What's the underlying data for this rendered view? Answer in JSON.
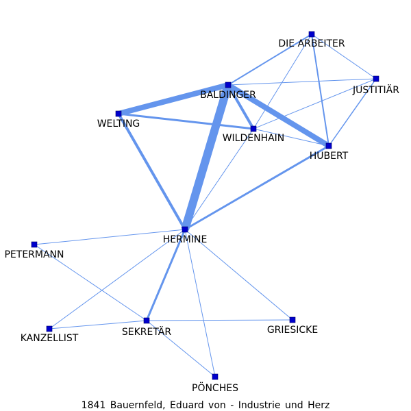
{
  "caption": "1841 Bauernfeld, Eduard von - Industrie und Herz",
  "colors": {
    "edge": "#6495ED",
    "node": "#0000CC",
    "text": "#000000"
  },
  "nodes": [
    {
      "id": "die_arbeiter",
      "label": "DIE ARBEITER"
    },
    {
      "id": "baldinger",
      "label": "BALDINGER"
    },
    {
      "id": "justitiar",
      "label": "JUSTITIÄR"
    },
    {
      "id": "welting",
      "label": "WELTING"
    },
    {
      "id": "wildenhain",
      "label": "WILDENHAIN"
    },
    {
      "id": "hubert",
      "label": "HUBERT"
    },
    {
      "id": "hermine",
      "label": "HERMINE"
    },
    {
      "id": "petermann",
      "label": "PETERMANN"
    },
    {
      "id": "kanzellist",
      "label": "KANZELLIST"
    },
    {
      "id": "sekretar",
      "label": "SEKRETÄR"
    },
    {
      "id": "griesicke",
      "label": "GRIESICKE"
    },
    {
      "id": "ponches",
      "label": "PÖNCHES"
    }
  ],
  "edges": [
    {
      "source": "die_arbeiter",
      "target": "baldinger",
      "weight": 2
    },
    {
      "source": "die_arbeiter",
      "target": "justitiar",
      "weight": 1
    },
    {
      "source": "die_arbeiter",
      "target": "hubert",
      "weight": 2
    },
    {
      "source": "die_arbeiter",
      "target": "wildenhain",
      "weight": 1
    },
    {
      "source": "baldinger",
      "target": "justitiar",
      "weight": 1
    },
    {
      "source": "baldinger",
      "target": "welting",
      "weight": 8
    },
    {
      "source": "baldinger",
      "target": "wildenhain",
      "weight": 4
    },
    {
      "source": "baldinger",
      "target": "hubert",
      "weight": 8
    },
    {
      "source": "baldinger",
      "target": "hermine",
      "weight": 12
    },
    {
      "source": "justitiar",
      "target": "wildenhain",
      "weight": 1
    },
    {
      "source": "justitiar",
      "target": "hubert",
      "weight": 1.5
    },
    {
      "source": "welting",
      "target": "wildenhain",
      "weight": 3
    },
    {
      "source": "welting",
      "target": "hermine",
      "weight": 4
    },
    {
      "source": "wildenhain",
      "target": "hubert",
      "weight": 1
    },
    {
      "source": "wildenhain",
      "target": "hermine",
      "weight": 1
    },
    {
      "source": "hubert",
      "target": "hermine",
      "weight": 3
    },
    {
      "source": "hermine",
      "target": "petermann",
      "weight": 1
    },
    {
      "source": "hermine",
      "target": "kanzellist",
      "weight": 1
    },
    {
      "source": "hermine",
      "target": "sekretar",
      "weight": 3
    },
    {
      "source": "hermine",
      "target": "griesicke",
      "weight": 1
    },
    {
      "source": "hermine",
      "target": "ponches",
      "weight": 1
    },
    {
      "source": "petermann",
      "target": "sekretar",
      "weight": 1
    },
    {
      "source": "kanzellist",
      "target": "sekretar",
      "weight": 1
    },
    {
      "source": "sekretar",
      "target": "griesicke",
      "weight": 1
    },
    {
      "source": "sekretar",
      "target": "ponches",
      "weight": 1
    }
  ]
}
